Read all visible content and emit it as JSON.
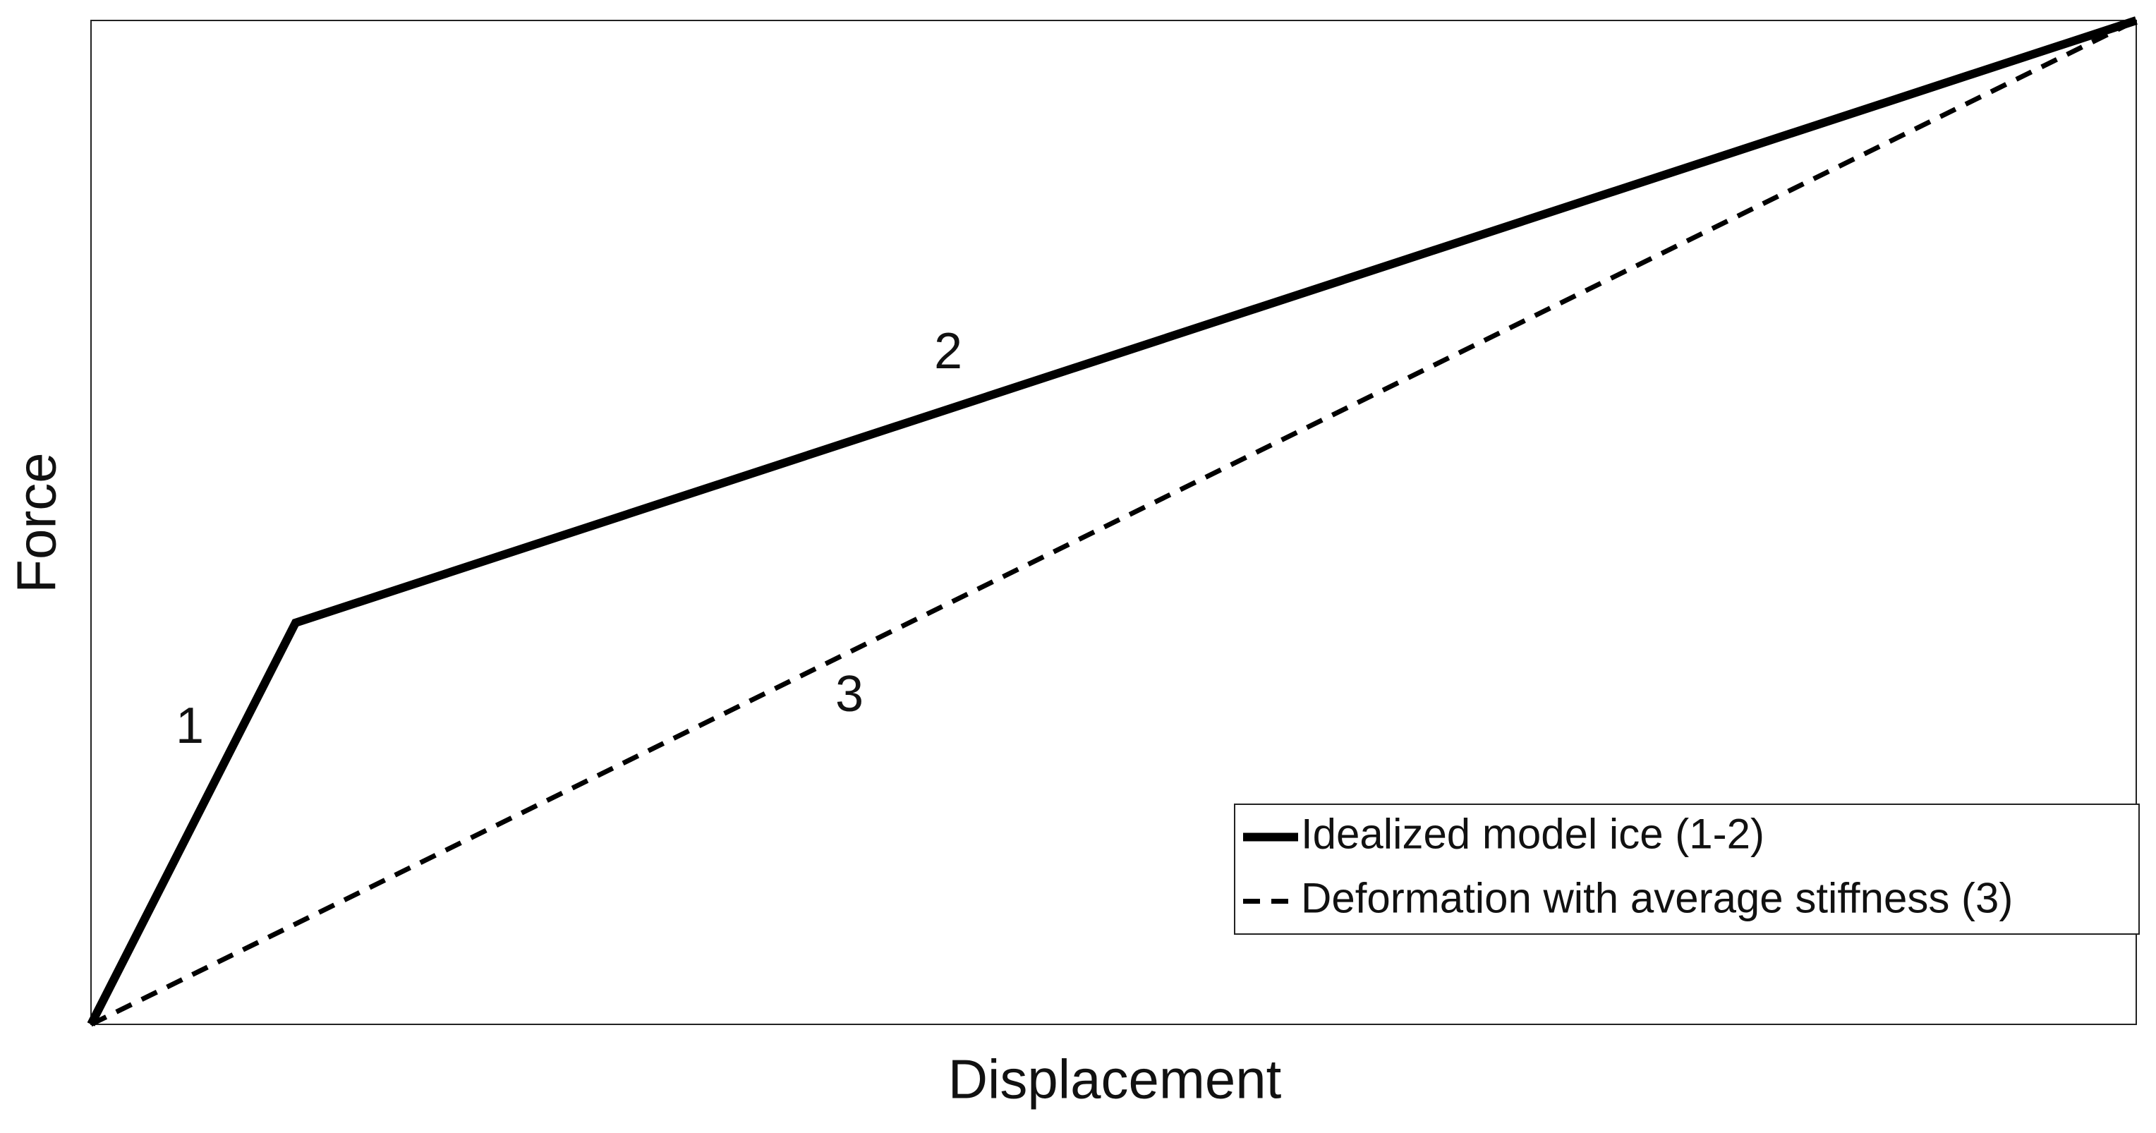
{
  "chart_data": {
    "type": "line",
    "x_label": "Displacement",
    "y_label": "Force",
    "xlim": [
      0,
      1
    ],
    "ylim": [
      0,
      1
    ],
    "series": [
      {
        "name": "Idealized model ice (1-2)",
        "color": "#000000",
        "line_style": "solid",
        "x": [
          0,
          0.1,
          1
        ],
        "values": [
          0,
          0.4,
          1
        ]
      },
      {
        "name": "Deformation with average stiffness (3)",
        "color": "#000000",
        "line_style": "dashed",
        "x": [
          0,
          1
        ],
        "values": [
          0,
          1
        ]
      }
    ],
    "annotations": [
      "1",
      "2",
      "3"
    ],
    "legend": "lower right"
  }
}
